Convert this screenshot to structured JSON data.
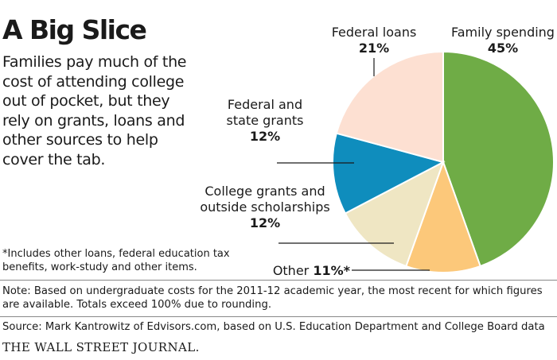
{
  "title": "A Big Slice",
  "subtitle": "Families pay much of the cost of attending college out of pocket, but they rely on grants, loans and other sources to help cover the tab.",
  "footnote": "*Includes other loans, federal education tax benefits, work-study and other items.",
  "note": "Note: Based on undergraduate costs for the 2011-12 academic year, the most recent for which figures are available. Totals exceed 100% due to rounding.",
  "source": "Source: Mark Kantrowitz of Edvisors.com, based on U.S. Education Department and College Board data",
  "brand": "THE WALL STREET JOURNAL.",
  "chart_data": {
    "type": "pie",
    "unit": "%",
    "slices": [
      {
        "label_lines": [
          "Family spending"
        ],
        "value": 45,
        "value_text": "45%",
        "color": "#6fac46"
      },
      {
        "label_lines": [
          "Other"
        ],
        "value": 11,
        "value_text": "11%*",
        "color": "#fcc87a"
      },
      {
        "label_lines": [
          "College grants and",
          "outside scholarships"
        ],
        "value": 12,
        "value_text": "12%",
        "color": "#efe6c3"
      },
      {
        "label_lines": [
          "Federal and",
          "state grants"
        ],
        "value": 12,
        "value_text": "12%",
        "color": "#0f8dbd"
      },
      {
        "label_lines": [
          "Federal loans"
        ],
        "value": 21,
        "value_text": "21%",
        "color": "#fde0d2"
      }
    ]
  }
}
